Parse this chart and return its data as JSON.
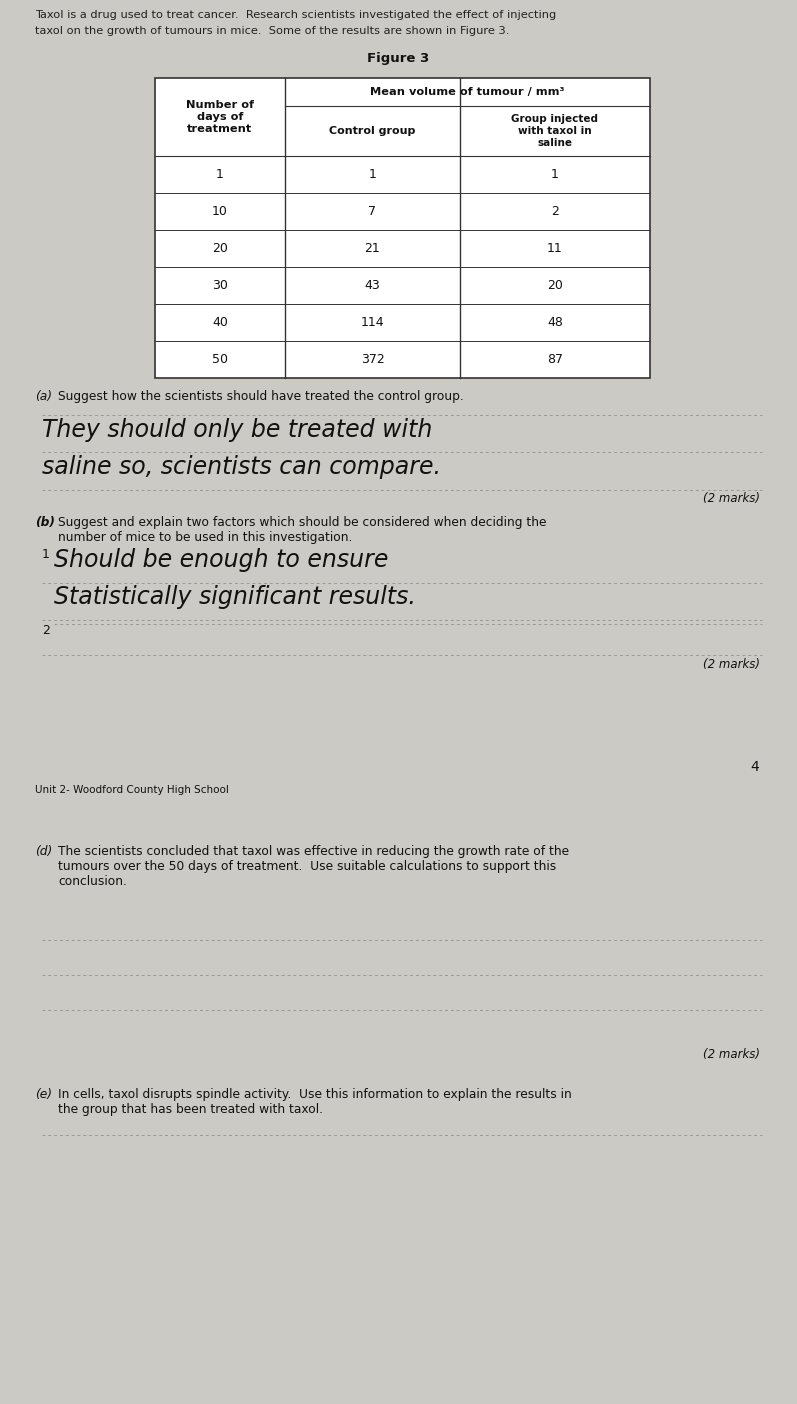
{
  "bg_color": "#cccac4",
  "intro_text_line1": "Taxol is a drug used to treat cancer.  Research scientists investigated the effect of injecting",
  "intro_text_line2": "taxol on the growth of tumours in mice.  Some of the results are shown in Figure 3.",
  "figure_title": "Figure 3",
  "table_header_col1": "Number of\ndays of\ntreatment",
  "table_header_col2_top": "Mean volume of tumour / mm³",
  "table_header_col2_bot": "Control group",
  "table_header_col3_bot": "Group injected\nwith taxol in\nsaline",
  "table_data": [
    [
      "1",
      "1",
      "1"
    ],
    [
      "10",
      "7",
      "2"
    ],
    [
      "20",
      "21",
      "11"
    ],
    [
      "30",
      "43",
      "20"
    ],
    [
      "40",
      "114",
      "48"
    ],
    [
      "50",
      "372",
      "87"
    ]
  ],
  "qa_label": "(a)",
  "qa_text": "Suggest how the scientists should have treated the control group.",
  "qa_hw1": "They should only be treated with",
  "qa_hw2": "saline so, scientists can compare.",
  "qa_marks": "(2 marks)",
  "qb_label": "(b)",
  "qb_text": "Suggest and explain two factors which should be considered when deciding the\nnumber of mice to be used in this investigation.",
  "qb_hw1_num": "1",
  "qb_hw1_a": "Should be enough to ensure",
  "qb_hw1_b": "Statistically significant results.",
  "qb_hw2_num": "2",
  "qb_marks": "(2 marks)",
  "page_num": "4",
  "footer_school": "Unit 2- Woodford County High School",
  "qd_label": "(d)",
  "qd_text": "The scientists concluded that taxol was effective in reducing the growth rate of the\ntumours over the 50 days of treatment.  Use suitable calculations to support this\nconclusion.",
  "qd_marks": "(2 marks)",
  "qe_label": "(e)",
  "qe_text": "In cells, taxol disrupts spindle activity.  Use this information to explain the results in\nthe group that has been treated with taxol."
}
